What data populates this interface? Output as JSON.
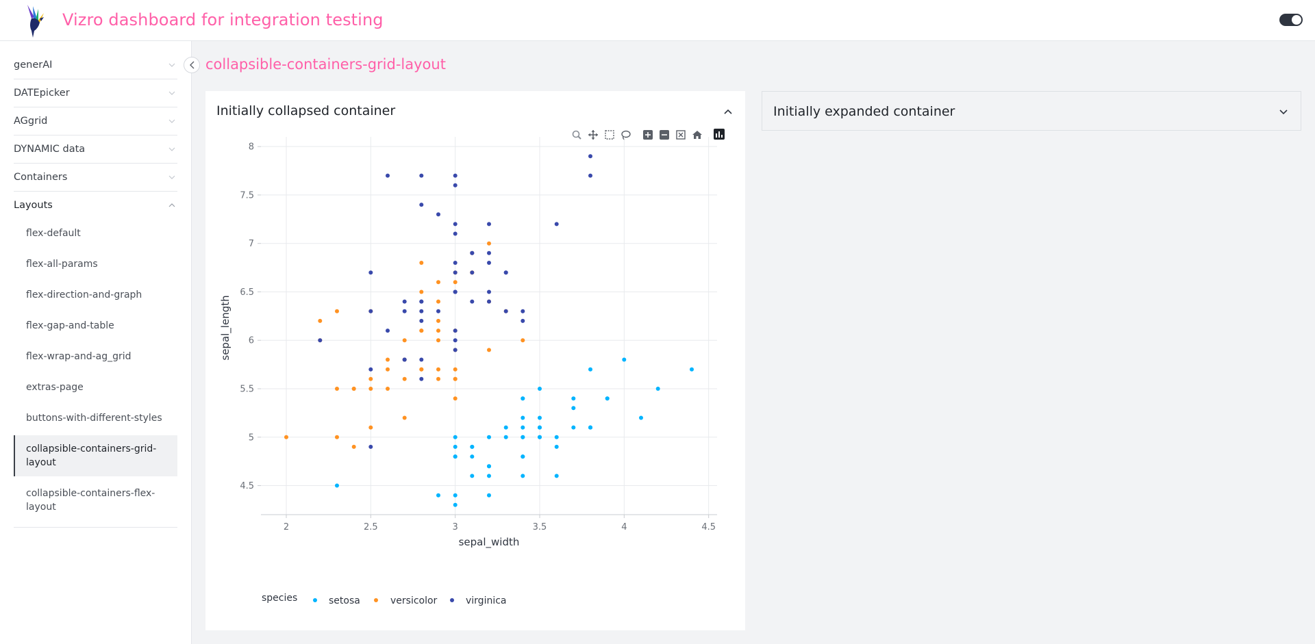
{
  "header": {
    "title": "Vizro dashboard for integration testing",
    "logo_icon": "hummingbird-logo-icon",
    "theme_toggle_icon": "toggle-icon"
  },
  "sidebar": {
    "items": [
      {
        "label": "generAI",
        "expanded": false
      },
      {
        "label": "DATEpicker",
        "expanded": false
      },
      {
        "label": "AGgrid",
        "expanded": false
      },
      {
        "label": "DYNAMIC data",
        "expanded": false
      },
      {
        "label": "Containers",
        "expanded": false
      },
      {
        "label": "Layouts",
        "expanded": true
      }
    ],
    "sub_items": [
      {
        "label": "flex-default",
        "active": false
      },
      {
        "label": "flex-all-params",
        "active": false
      },
      {
        "label": "flex-direction-and-graph",
        "active": false
      },
      {
        "label": "flex-gap-and-table",
        "active": false
      },
      {
        "label": "flex-wrap-and-ag_grid",
        "active": false
      },
      {
        "label": "extras-page",
        "active": false
      },
      {
        "label": "buttons-with-different-styles",
        "active": false
      },
      {
        "label": "collapsible-containers-grid-layout",
        "active": true
      },
      {
        "label": "collapsible-containers-flex-layout",
        "active": false
      }
    ]
  },
  "page": {
    "title": "collapsible-containers-grid-layout"
  },
  "containers": {
    "left": {
      "title": "Initially collapsed container",
      "state_icon": "chevron-up-icon"
    },
    "right": {
      "title": "Initially expanded container",
      "state_icon": "chevron-down-icon"
    }
  },
  "modebar": [
    "zoom-icon",
    "pan-icon",
    "box-select-icon",
    "lasso-select-icon",
    "zoom-in-icon",
    "zoom-out-icon",
    "autoscale-icon",
    "reset-axes-icon",
    "plotly-logo-icon"
  ],
  "chart_data": {
    "type": "scatter",
    "xlabel": "sepal_width",
    "ylabel": "sepal_length",
    "xlim": [
      1.85,
      4.55
    ],
    "ylim": [
      4.2,
      8.1
    ],
    "xticks": [
      2,
      2.5,
      3,
      3.5,
      4,
      4.5
    ],
    "yticks": [
      4.5,
      5,
      5.5,
      6,
      6.5,
      7,
      7.5,
      8
    ],
    "grid": true,
    "legend_title": "species",
    "legend_position": "bottom-left",
    "series": [
      {
        "name": "setosa",
        "color": "#00b4ff",
        "x": [
          3.5,
          3.0,
          3.2,
          3.1,
          3.6,
          3.9,
          3.4,
          3.4,
          2.9,
          3.1,
          3.7,
          3.4,
          3.0,
          3.0,
          4.0,
          4.4,
          3.9,
          3.5,
          3.8,
          3.8,
          3.4,
          3.7,
          3.6,
          3.3,
          3.4,
          3.0,
          3.4,
          3.5,
          3.4,
          3.2,
          3.1,
          3.4,
          4.1,
          4.2,
          3.1,
          3.2,
          3.5,
          3.6,
          3.0,
          3.4,
          3.5,
          2.3,
          3.2,
          3.5,
          3.8,
          3.0,
          3.8,
          3.2,
          3.7,
          3.3
        ],
        "y": [
          5.1,
          4.9,
          4.7,
          4.6,
          5.0,
          5.4,
          4.6,
          5.0,
          4.4,
          4.9,
          5.4,
          4.8,
          4.8,
          4.3,
          5.8,
          5.7,
          5.4,
          5.1,
          5.7,
          5.1,
          5.4,
          5.1,
          4.6,
          5.1,
          4.8,
          5.0,
          5.0,
          5.2,
          5.2,
          4.7,
          4.8,
          5.4,
          5.2,
          5.5,
          4.9,
          5.0,
          5.5,
          4.9,
          4.4,
          5.1,
          5.0,
          4.5,
          4.4,
          5.0,
          5.1,
          4.8,
          5.1,
          4.6,
          5.3,
          5.0
        ]
      },
      {
        "name": "versicolor",
        "color": "#ff9222",
        "x": [
          3.2,
          3.2,
          3.1,
          2.3,
          2.8,
          2.8,
          3.3,
          2.4,
          2.9,
          2.7,
          2.0,
          3.0,
          2.2,
          2.9,
          2.9,
          3.1,
          3.0,
          2.7,
          2.2,
          2.5,
          3.2,
          2.8,
          2.5,
          2.8,
          2.9,
          3.0,
          2.8,
          3.0,
          2.9,
          2.6,
          2.4,
          2.4,
          2.7,
          2.7,
          3.0,
          3.4,
          3.1,
          2.3,
          3.0,
          2.5,
          2.6,
          3.0,
          2.6,
          2.3,
          2.7,
          3.0,
          2.9,
          2.9,
          2.5,
          2.8
        ],
        "y": [
          7.0,
          6.4,
          6.9,
          5.5,
          6.5,
          5.7,
          6.3,
          4.9,
          6.6,
          5.2,
          5.0,
          5.9,
          6.0,
          6.1,
          5.6,
          6.7,
          5.6,
          5.8,
          6.2,
          5.6,
          5.9,
          6.1,
          6.3,
          6.1,
          6.4,
          6.6,
          6.8,
          6.7,
          6.0,
          5.7,
          5.5,
          5.5,
          5.8,
          6.0,
          5.4,
          6.0,
          6.7,
          6.3,
          5.6,
          5.5,
          5.5,
          6.1,
          5.8,
          5.0,
          5.6,
          5.7,
          5.7,
          6.2,
          5.1,
          5.7
        ]
      },
      {
        "name": "virginica",
        "color": "#3949ab",
        "x": [
          3.3,
          2.7,
          3.0,
          2.9,
          3.0,
          3.0,
          2.5,
          2.9,
          2.5,
          3.6,
          3.2,
          2.7,
          3.0,
          2.5,
          2.8,
          3.2,
          3.0,
          3.8,
          2.6,
          2.2,
          3.2,
          2.8,
          2.8,
          2.7,
          3.3,
          3.2,
          2.8,
          3.0,
          2.8,
          3.0,
          2.8,
          3.8,
          2.8,
          2.8,
          2.6,
          3.0,
          3.4,
          3.1,
          3.0,
          3.1,
          3.1,
          3.1,
          2.7,
          3.2,
          3.3,
          3.0,
          2.5,
          3.0,
          3.4,
          3.0
        ],
        "y": [
          6.3,
          5.8,
          7.1,
          6.3,
          6.5,
          7.6,
          4.9,
          7.3,
          6.7,
          7.2,
          6.5,
          6.4,
          6.8,
          5.7,
          5.8,
          6.4,
          6.5,
          7.7,
          7.7,
          6.0,
          6.9,
          5.6,
          7.7,
          6.3,
          6.7,
          7.2,
          6.2,
          6.1,
          6.4,
          7.2,
          7.4,
          7.9,
          6.4,
          6.3,
          6.1,
          7.7,
          6.3,
          6.4,
          6.0,
          6.9,
          6.7,
          6.9,
          5.8,
          6.8,
          6.7,
          6.7,
          6.3,
          6.5,
          6.2,
          5.9
        ]
      }
    ]
  }
}
